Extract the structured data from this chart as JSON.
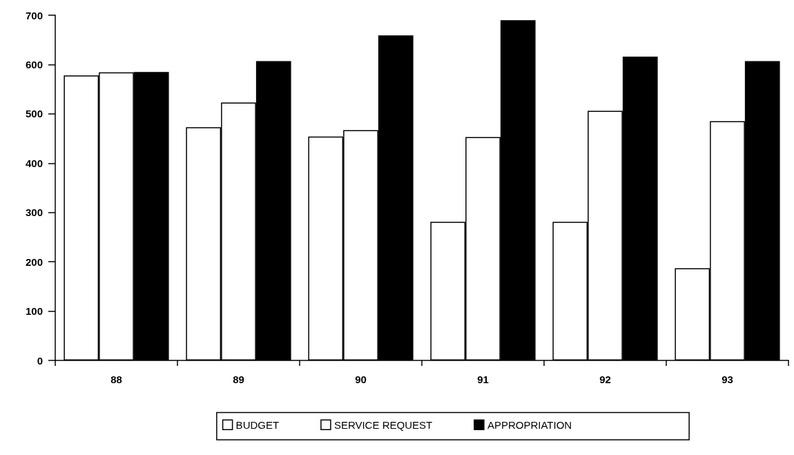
{
  "chart_data": {
    "type": "bar",
    "categories": [
      "88",
      "89",
      "90",
      "91",
      "92",
      "93"
    ],
    "series": [
      {
        "name": "BUDGET",
        "color": "#ffffff",
        "values": [
          578,
          473,
          454,
          281,
          281,
          187
        ]
      },
      {
        "name": "SERVICE REQUEST",
        "color": "#ffffff",
        "values": [
          584,
          523,
          467,
          453,
          506,
          485
        ]
      },
      {
        "name": "APPROPRIATION",
        "color": "#000000",
        "values": [
          585,
          607,
          659,
          690,
          616,
          607
        ]
      }
    ],
    "ylim": [
      0,
      700
    ],
    "yticks": [
      0,
      100,
      200,
      300,
      400,
      500,
      600,
      700
    ],
    "grid": false,
    "legend": "bottom"
  }
}
